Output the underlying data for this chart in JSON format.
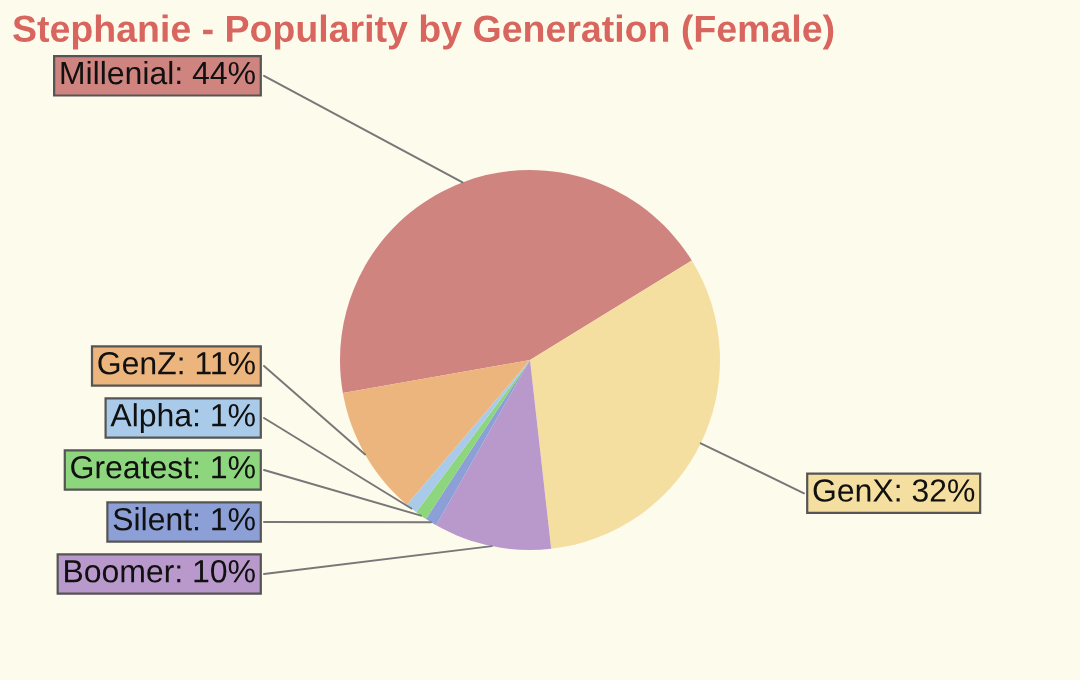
{
  "chart_data": {
    "type": "pie",
    "title": "Stephanie - Popularity by Generation (Female)",
    "categories": [
      "Millenial: 44%",
      "GenX: 32%",
      "Boomer: 10%",
      "Silent: 1%",
      "Greatest: 1%",
      "Alpha: 1%",
      "GenZ: 11%"
    ],
    "values": [
      44,
      32,
      10,
      1,
      1,
      1,
      11
    ],
    "colors": [
      "#d0847f",
      "#f5dfa0",
      "#b999cb",
      "#8c9fd6",
      "#8ed67e",
      "#a9cbe9",
      "#ecb57d"
    ]
  }
}
